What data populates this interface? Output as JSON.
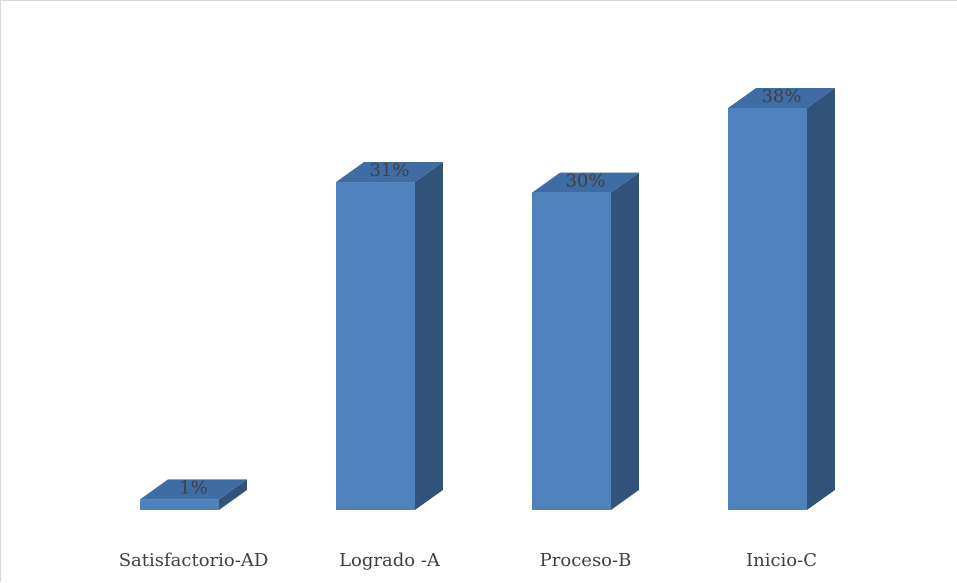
{
  "chart_data": {
    "type": "bar",
    "style": "3d-column",
    "categories": [
      "Satisfactorio-AD",
      "Logrado -A",
      "Proceso-B",
      "Inicio-C"
    ],
    "values": [
      1,
      31,
      30,
      38
    ],
    "value_labels": [
      "1%",
      "31%",
      "30%",
      "38%"
    ],
    "unit": "%",
    "ylim": [
      0,
      38
    ],
    "grid": false,
    "legend": "none",
    "colors": {
      "front": "#4f81bd",
      "side": "#325379",
      "top": "#3f6da3"
    }
  }
}
